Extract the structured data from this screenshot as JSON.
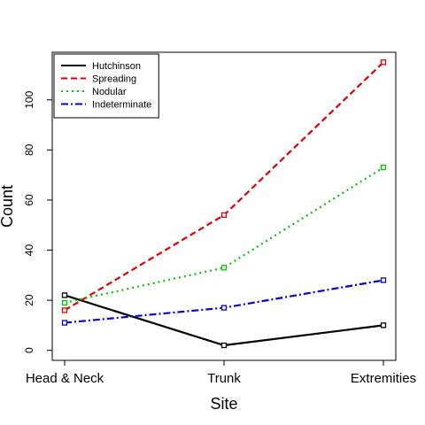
{
  "chart_data": {
    "type": "line",
    "title": "",
    "xlabel": "Site",
    "ylabel": "Count",
    "categories": [
      "Head & Neck",
      "Trunk",
      "Extremities"
    ],
    "yticks": [
      0,
      20,
      40,
      60,
      80,
      100
    ],
    "ylim": [
      -4,
      119
    ],
    "grid": false,
    "legend_position": "top-left",
    "series": [
      {
        "name": "Hutchinson",
        "values": [
          22,
          2,
          10
        ],
        "color": "#000000",
        "line_style": "solid",
        "marker": "open-square"
      },
      {
        "name": "Spreading",
        "values": [
          16,
          54,
          115
        ],
        "color": "#df0000",
        "line_style": "dashed",
        "marker": "open-square"
      },
      {
        "name": "Nodular",
        "values": [
          19,
          33,
          73
        ],
        "color": "#00c800",
        "line_style": "dotted",
        "marker": "open-square"
      },
      {
        "name": "Indeterminate",
        "values": [
          11,
          17,
          28
        ],
        "color": "#0000e0",
        "line_style": "dash-dot",
        "marker": "open-square"
      }
    ]
  }
}
